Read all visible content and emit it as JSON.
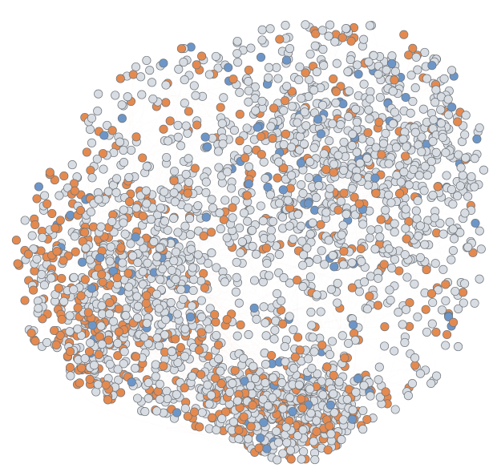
{
  "figure": {
    "type": "network-graph",
    "node_classes": [
      {
        "key": "orange",
        "color": "#e58a4f",
        "stroke": "#8a5b3d",
        "share": 0.29
      },
      {
        "key": "blue",
        "color": "#6d96c8",
        "stroke": "#4f6b8a",
        "share": 0.08
      },
      {
        "key": "gray",
        "color": "#d8dde3",
        "stroke": "#70757c",
        "share": 0.63
      }
    ],
    "edge_colors": [
      "#ecb58c",
      "#cad0d8",
      "#b9c7db"
    ],
    "background": "#ffffff",
    "labels_visible": false
  }
}
